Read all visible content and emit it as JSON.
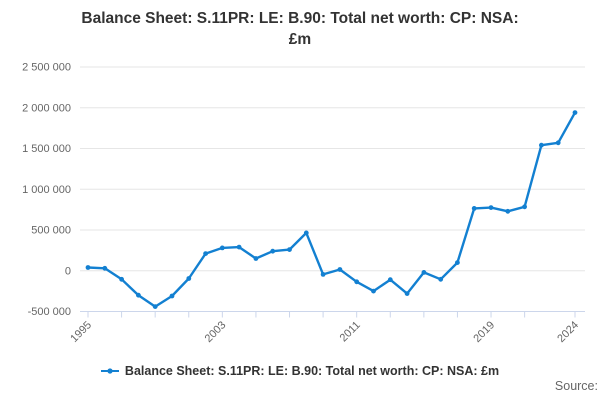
{
  "title": {
    "line1": "Balance Sheet: S.11PR: LE: B.90: Total net worth: CP: NSA:",
    "line2": "£m"
  },
  "legend": {
    "label": "Balance Sheet: S.11PR: LE: B.90: Total net worth: CP: NSA: £m"
  },
  "source_label": "Source:",
  "colors": {
    "line": "#1380d1",
    "grid": "#e6e6e6",
    "axis": "#ccd6eb",
    "tick_label": "#666666",
    "title": "#333333",
    "legend_text": "#333333"
  },
  "y_axis": {
    "tick_labels": [
      "2 500 000",
      "2 000 000",
      "1 500 000",
      "1 000 000",
      "500 000",
      "0",
      "-500 000"
    ],
    "min": -500000,
    "max": 2500000,
    "step": 500000
  },
  "x_axis": {
    "tick_years": [
      1995,
      1997,
      1999,
      2001,
      2003,
      2005,
      2007,
      2009,
      2011,
      2013,
      2015,
      2017,
      2019,
      2021,
      2024
    ],
    "label_years": [
      1995,
      2003,
      2011,
      2019,
      2024
    ]
  },
  "chart_data": {
    "type": "line",
    "title": "Balance Sheet: S.11PR: LE: B.90: Total net worth: CP: NSA: £m",
    "xlabel": "",
    "ylabel": "£m",
    "ylim": [
      -500000,
      2500000
    ],
    "grid": true,
    "legend_position": "bottom",
    "x": [
      1995,
      1996,
      1997,
      1998,
      1999,
      2000,
      2001,
      2002,
      2003,
      2004,
      2005,
      2006,
      2007,
      2008,
      2009,
      2010,
      2011,
      2012,
      2013,
      2014,
      2015,
      2016,
      2017,
      2018,
      2019,
      2020,
      2021,
      2022,
      2023,
      2024
    ],
    "values": [
      40000,
      30000,
      -105000,
      -300000,
      -440000,
      -310000,
      -95000,
      210000,
      280000,
      290000,
      150000,
      240000,
      260000,
      465000,
      -45000,
      15000,
      -135000,
      -250000,
      -110000,
      -280000,
      -20000,
      -105000,
      100000,
      765000,
      775000,
      730000,
      785000,
      1540000,
      1570000,
      1940000
    ]
  }
}
